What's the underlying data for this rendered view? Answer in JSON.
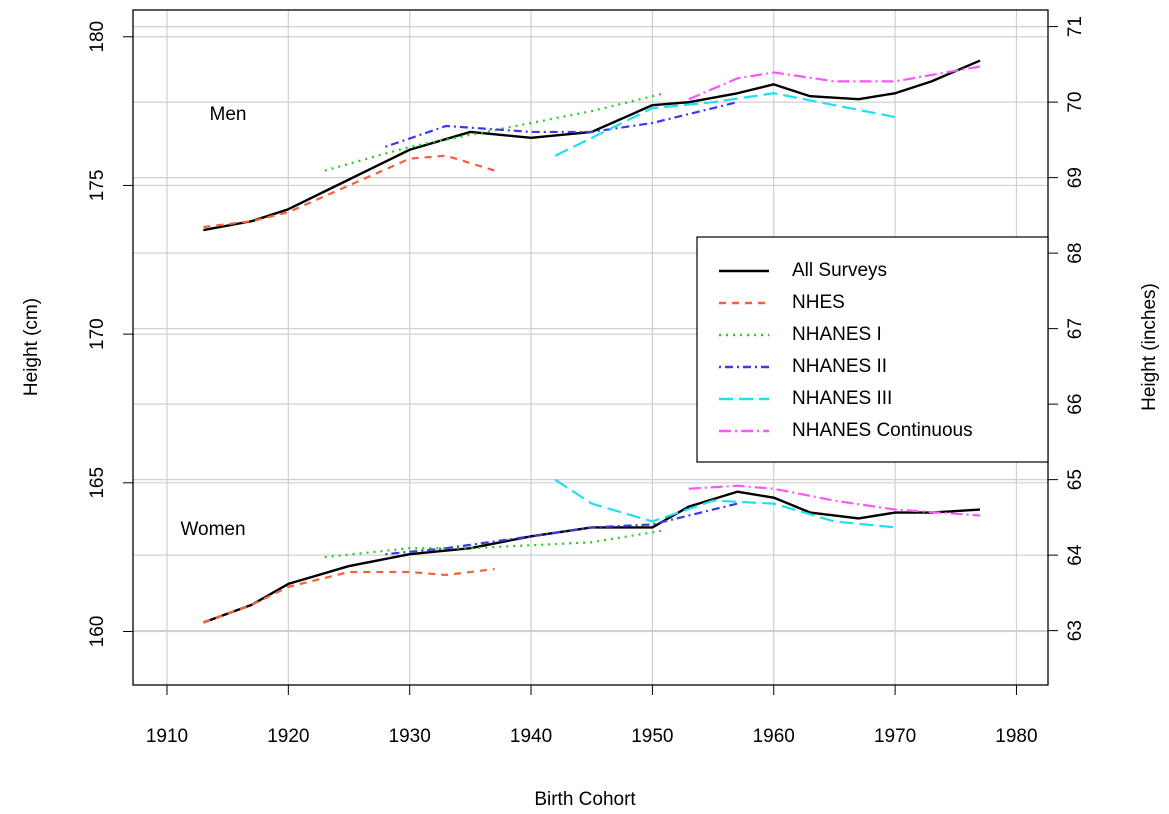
{
  "chart_data": {
    "type": "line",
    "xlabel": "Birth Cohort",
    "ylabel": "Height (cm)",
    "y2label": "Height (inches)",
    "annotations": [
      "Men",
      "Women"
    ],
    "xlim": [
      1907.2,
      1982.6
    ],
    "xticks": [
      1910,
      1920,
      1930,
      1940,
      1950,
      1960,
      1970,
      1980
    ],
    "ylim": [
      158.2,
      180.9
    ],
    "yticks": [
      160,
      165,
      170,
      175,
      180
    ],
    "y2lim": [
      62.28,
      71.22
    ],
    "y2ticks": [
      63,
      64,
      65,
      66,
      67,
      68,
      69,
      70,
      71
    ],
    "grid": true,
    "legend": "right",
    "series": [
      {
        "name": "All Surveys",
        "color": "#000000",
        "dash": "none",
        "x": [
          1913,
          1917,
          1920,
          1925,
          1930,
          1935,
          1940,
          1945,
          1950,
          1953,
          1957,
          1960,
          1963,
          1967,
          1970,
          1973,
          1977
        ],
        "men": [
          173.5,
          173.8,
          174.2,
          175.2,
          176.2,
          176.8,
          176.6,
          176.8,
          177.7,
          177.8,
          178.1,
          178.4,
          178.0,
          177.9,
          178.1,
          178.5,
          179.2
        ],
        "women": [
          160.3,
          160.9,
          161.6,
          162.2,
          162.6,
          162.8,
          163.2,
          163.5,
          163.5,
          164.2,
          164.7,
          164.5,
          164.0,
          163.8,
          164.0,
          164.0,
          164.1
        ]
      },
      {
        "name": "NHES",
        "color": "#f4603a",
        "dash": "7,6",
        "x": [
          1913,
          1917,
          1920,
          1925,
          1930,
          1933,
          1937
        ],
        "men": [
          173.6,
          173.8,
          174.1,
          175.0,
          175.9,
          176.0,
          175.5
        ],
        "women": [
          160.3,
          160.9,
          161.5,
          162.0,
          162.0,
          161.9,
          162.1
        ]
      },
      {
        "name": "NHANES I",
        "color": "#22cc22",
        "dash": "2,5",
        "x": [
          1923,
          1930,
          1935,
          1940,
          1945,
          1951
        ],
        "men": [
          175.5,
          176.3,
          176.7,
          177.1,
          177.5,
          178.1
        ],
        "women": [
          162.5,
          162.8,
          162.8,
          162.9,
          163.0,
          163.4
        ]
      },
      {
        "name": "NHANES II",
        "color": "#3a3ae8",
        "dash": "2,4,8,4",
        "x": [
          1928,
          1933,
          1940,
          1945,
          1950,
          1957
        ],
        "men": [
          176.3,
          177.0,
          176.8,
          176.8,
          177.1,
          177.8
        ],
        "women": [
          162.6,
          162.8,
          163.2,
          163.5,
          163.6,
          164.3
        ]
      },
      {
        "name": "NHANES III",
        "color": "#1ee0f0",
        "dash": "14,6",
        "x": [
          1942,
          1945,
          1950,
          1955,
          1960,
          1965,
          1970
        ],
        "men": [
          176.0,
          176.6,
          177.6,
          177.8,
          178.1,
          177.7,
          177.3
        ],
        "women": [
          165.1,
          164.3,
          163.7,
          164.4,
          164.3,
          163.7,
          163.5
        ]
      },
      {
        "name": "NHANES Continuous",
        "color": "#ff55ff",
        "dash": "12,4,2,4",
        "x": [
          1953,
          1957,
          1960,
          1965,
          1970,
          1977
        ],
        "men": [
          177.9,
          178.6,
          178.8,
          178.5,
          178.5,
          179.0
        ],
        "women": [
          164.8,
          164.9,
          164.8,
          164.4,
          164.1,
          163.9
        ]
      }
    ]
  }
}
